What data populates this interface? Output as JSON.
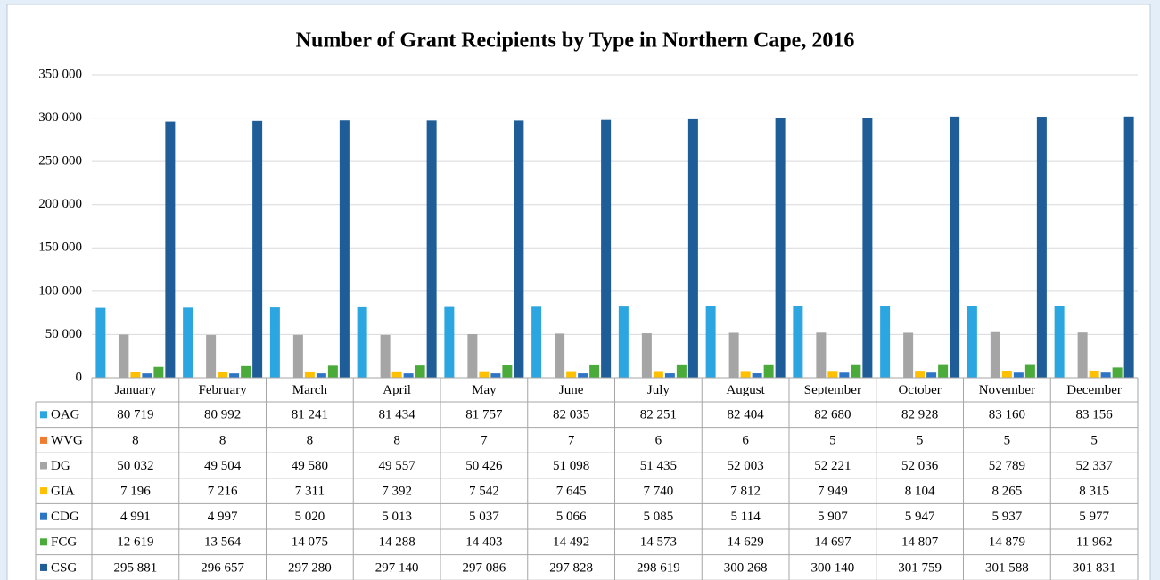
{
  "chart_data": {
    "type": "bar",
    "title": "Number of Grant Recipients by Type in Northern Cape, 2016",
    "categories": [
      "January",
      "February",
      "March",
      "April",
      "May",
      "June",
      "July",
      "August",
      "September",
      "October",
      "November",
      "December"
    ],
    "ylim": [
      0,
      350000
    ],
    "yticks": [
      0,
      {
        "value": 50000,
        "label": "50 000"
      },
      {
        "value": 100000,
        "label": "100 000"
      },
      {
        "value": 150000,
        "label": "150 000"
      },
      {
        "value": 200000,
        "label": "200 000"
      },
      {
        "value": 250000,
        "label": "250 000"
      },
      {
        "value": 300000,
        "label": "300 000"
      },
      {
        "value": 350000,
        "label": "350 000"
      }
    ],
    "grid": true,
    "series": [
      {
        "name": "OAG",
        "color": "#2ba6e0",
        "values": [
          80719,
          80992,
          81241,
          81434,
          81757,
          82035,
          82251,
          82404,
          82680,
          82928,
          83160,
          83156
        ],
        "value_labels": [
          "80 719",
          "80 992",
          "81 241",
          "81 434",
          "81 757",
          "82 035",
          "82 251",
          "82 404",
          "82 680",
          "82 928",
          "83 160",
          "83 156"
        ]
      },
      {
        "name": "WVG",
        "color": "#f07c32",
        "values": [
          8,
          8,
          8,
          8,
          7,
          7,
          6,
          6,
          5,
          5,
          5,
          5
        ]
      },
      {
        "name": "DG",
        "color": "#a5a5a5",
        "values": [
          50032,
          49504,
          49580,
          49557,
          50426,
          51098,
          51435,
          52003,
          52221,
          52036,
          52789,
          52337
        ],
        "value_labels": [
          "50 032",
          "49 504",
          "49 580",
          "49 557",
          "50 426",
          "51 098",
          "51 435",
          "52 003",
          "52 221",
          "52 036",
          "52 789",
          "52 337"
        ]
      },
      {
        "name": "GIA",
        "color": "#ffc000",
        "values": [
          7196,
          7216,
          7311,
          7392,
          7542,
          7645,
          7740,
          7812,
          7949,
          8104,
          8265,
          8315
        ],
        "value_labels": [
          "7 196",
          "7 216",
          "7 311",
          "7 392",
          "7 542",
          "7 645",
          "7 740",
          "7 812",
          "7 949",
          "8 104",
          "8 265",
          "8 315"
        ]
      },
      {
        "name": "CDG",
        "color": "#2e75c6",
        "values": [
          4991,
          4997,
          5020,
          5013,
          5037,
          5066,
          5085,
          5114,
          5907,
          5947,
          5937,
          5977
        ],
        "value_labels": [
          "4 991",
          "4 997",
          "5 020",
          "5 013",
          "5 037",
          "5 066",
          "5 085",
          "5 114",
          "5 907",
          "5 947",
          "5 937",
          "5 977"
        ]
      },
      {
        "name": "FCG",
        "color": "#4aab3a",
        "values": [
          12619,
          13564,
          14075,
          14288,
          14403,
          14492,
          14573,
          14629,
          14697,
          14807,
          14879,
          11962
        ],
        "value_labels": [
          "12 619",
          "13 564",
          "14 075",
          "14 288",
          "14 403",
          "14 492",
          "14 573",
          "14 629",
          "14 697",
          "14 807",
          "14 879",
          "11 962"
        ]
      },
      {
        "name": "CSG",
        "color": "#1e5d97",
        "values": [
          295881,
          296657,
          297280,
          297140,
          297086,
          297828,
          298619,
          300268,
          300140,
          301759,
          301588,
          301831
        ],
        "value_labels": [
          "295 881",
          "296 657",
          "297 280",
          "297 140",
          "297 086",
          "297 828",
          "298 619",
          "300 268",
          "300 140",
          "301 759",
          "301 588",
          "301 831"
        ]
      }
    ]
  }
}
